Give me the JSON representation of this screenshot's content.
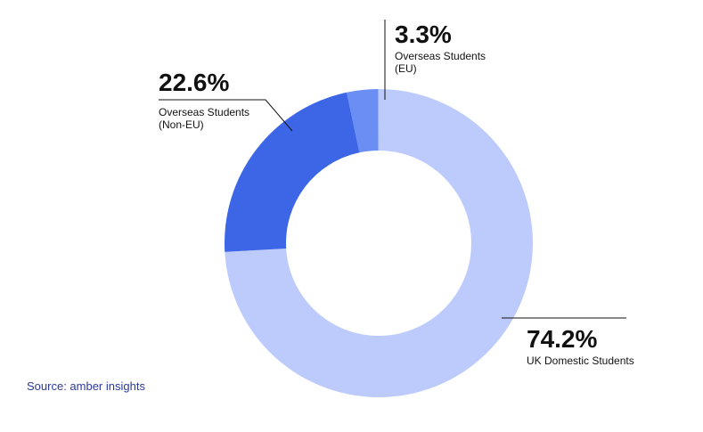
{
  "chart_data": {
    "type": "pie",
    "variant": "donut",
    "categories": [
      "Overseas Students (EU)",
      "UK Domestic Students",
      "Overseas Students (Non-EU)"
    ],
    "values": [
      3.3,
      74.2,
      22.6
    ],
    "value_labels": [
      "3.3%",
      "74.2%",
      "22.6%"
    ],
    "category_label_lines": [
      [
        "Overseas Students",
        "(EU)"
      ],
      [
        "UK Domestic Students"
      ],
      [
        "Overseas Students",
        "(Non-EU)"
      ]
    ],
    "colors": [
      "#6b8ef5",
      "#bccbfc",
      "#3d66e6"
    ],
    "legend": "none (direct labels)",
    "grid": false
  },
  "source": "Source: amber insights"
}
